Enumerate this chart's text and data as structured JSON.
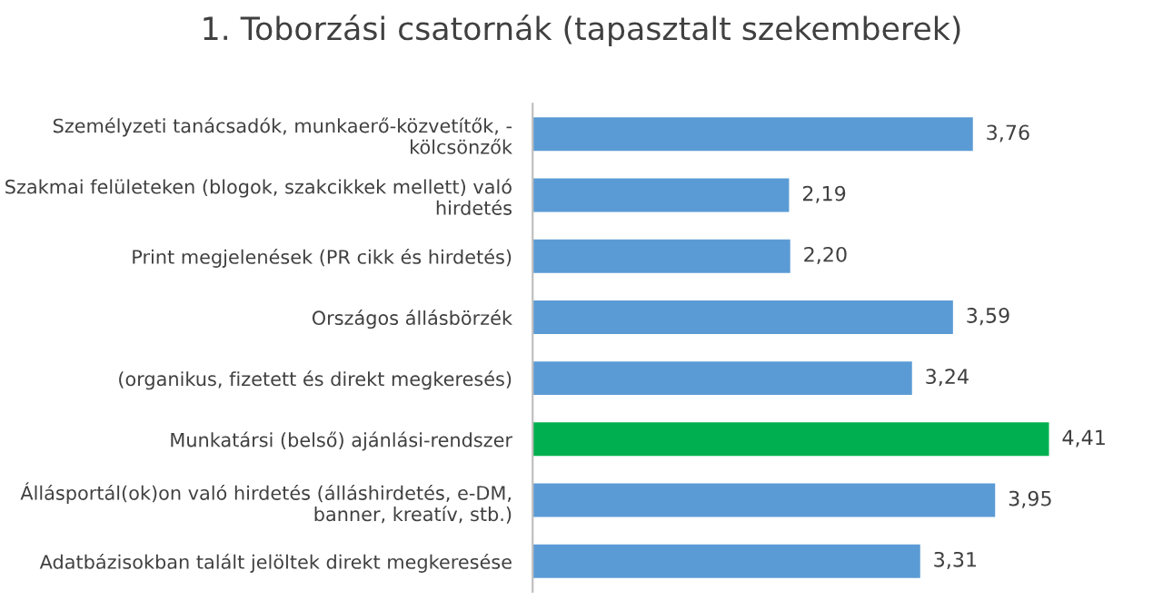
{
  "chart_data": {
    "type": "bar",
    "orientation": "horizontal",
    "title": "1. Toborzási csatornák (tapasztalt szekemberek)",
    "categories": [
      "Személyzeti tanácsadók, munkaerő-közvetítők, -\nkölcsönzők",
      "Szakmai felületeken (blogok, szakcikkek mellett) való\nhirdetés",
      "Print megjelenések (PR cikk és hirdetés)",
      "Országos állásbörzék",
      "(organikus, fizetett és direkt megkeresés)",
      "Munkatársi (belső) ajánlási-rendszer",
      "Állásportál(ok)on való hirdetés (álláshirdetés, e-DM,\nbanner, kreatív, stb.)",
      "Adatbázisokban talált jelöltek direkt megkeresése"
    ],
    "values": [
      3.76,
      2.19,
      2.2,
      3.59,
      3.24,
      4.41,
      3.95,
      3.31
    ],
    "value_labels": [
      "3,76",
      "2,19",
      "2,20",
      "3,59",
      "3,24",
      "4,41",
      "3,95",
      "3,31"
    ],
    "colors": [
      "#5b9bd5",
      "#5b9bd5",
      "#5b9bd5",
      "#5b9bd5",
      "#5b9bd5",
      "#00b050",
      "#5b9bd5",
      "#5b9bd5"
    ],
    "grid": false,
    "legend": false
  }
}
